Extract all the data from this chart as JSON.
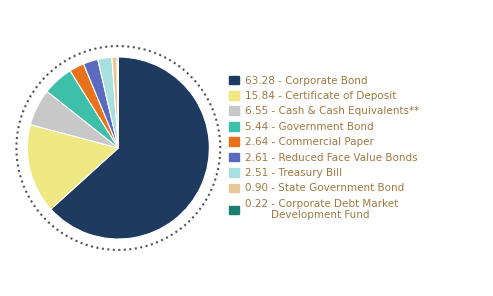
{
  "slices": [
    63.28,
    15.84,
    6.55,
    5.44,
    2.64,
    2.61,
    2.51,
    0.9,
    0.22
  ],
  "colors": [
    "#1e3a5f",
    "#f0e882",
    "#c8c8c8",
    "#3dbfaa",
    "#e8721a",
    "#5a6abf",
    "#a8e0e0",
    "#e8c898",
    "#1a8070"
  ],
  "labels": [
    "63.28 - Corporate Bond",
    "15.84 - Certificate of Deposit",
    "6.55 - Cash & Cash Equivalents**",
    "5.44 - Government Bond",
    "2.64 - Commercial Paper",
    "2.61 - Reduced Face Value Bonds",
    "2.51 - Treasury Bill",
    "0.90 - State Government Bond",
    "0.22 - Corporate Debt Market\n        Development Fund"
  ],
  "background_color": "#ffffff",
  "text_color": "#a07840",
  "legend_font_size": 7.5
}
